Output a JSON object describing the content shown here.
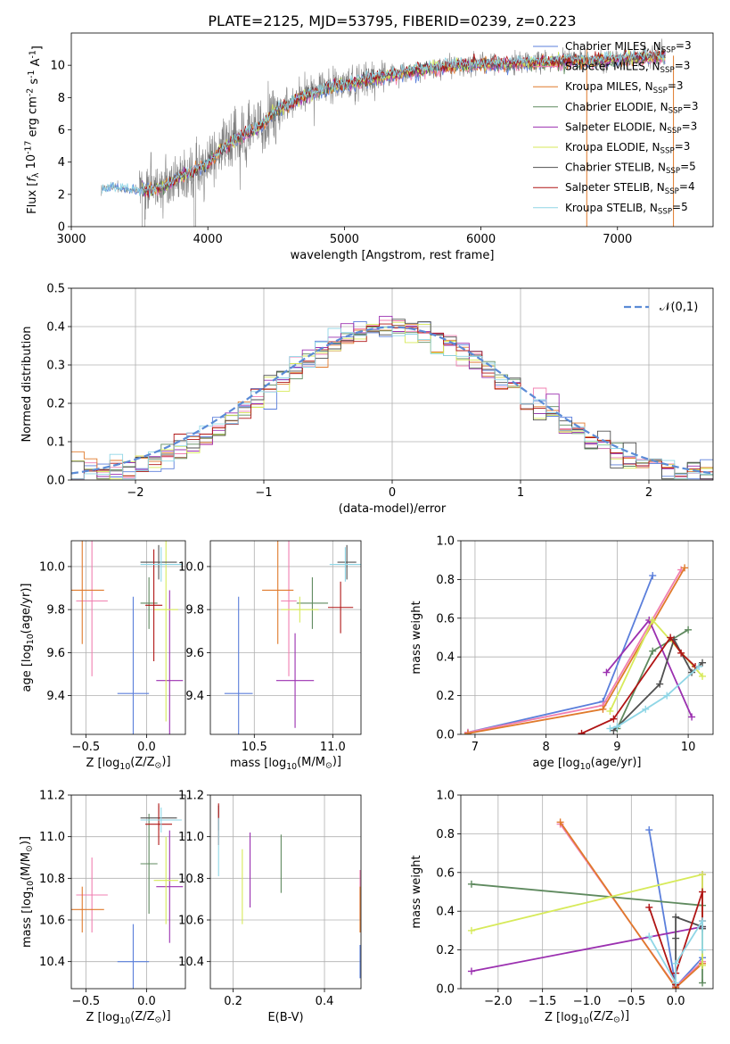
{
  "figure_title": "PLATE=2125, MJD=53795, FIBERID=0239, z=0.223",
  "colors": {
    "grid": "#b0b0b0",
    "observed_spectrum": "#808080",
    "normal_curve": "#5b8bd6"
  },
  "series_styles": [
    {
      "label": "Chabrier MILES, N$_{SSP}$=3",
      "color": "#5b7fdb"
    },
    {
      "label": "Salpeter MILES, N$_{SSP}$=3",
      "color": "#f07fb0"
    },
    {
      "label": "Kroupa MILES, N$_{SSP}$=3",
      "color": "#e07a2c"
    },
    {
      "label": "Chabrier ELODIE, N$_{SSP}$=3",
      "color": "#5f8a5f"
    },
    {
      "label": "Salpeter ELODIE, N$_{SSP}$=3",
      "color": "#9b30b0"
    },
    {
      "label": "Kroupa ELODIE, N$_{SSP}$=3",
      "color": "#d7ea5a"
    },
    {
      "label": "Chabrier STELIB, N$_{SSP}$=5",
      "color": "#505050"
    },
    {
      "label": "Salpeter STELIB, N$_{SSP}$=4",
      "color": "#b01515"
    },
    {
      "label": "Kroupa STELIB, N$_{SSP}$=5",
      "color": "#8fd6e6"
    }
  ],
  "chart_data": [
    {
      "id": "spectrum",
      "type": "line",
      "xlabel": "wavelength [Angstrom, rest frame]",
      "ylabel": "Flux [$f_\\lambda 10^{-17}$ erg cm$^{-2}$ s$^{-1}$ A$^{-1}$]",
      "xlim": [
        3000,
        7700
      ],
      "ylim": [
        0,
        12
      ],
      "xticks": [
        3000,
        4000,
        5000,
        6000,
        7000
      ],
      "yticks": [
        0,
        2,
        4,
        6,
        8,
        10
      ],
      "grid": false,
      "legend": "right",
      "observed_anchor": {
        "x": [
          3220,
          3300,
          3400,
          3500,
          3600,
          3700,
          3800,
          3900,
          4000,
          4100,
          4200,
          4300,
          4400,
          4500,
          4600,
          4700,
          4800,
          4900,
          5000,
          5200,
          5400,
          5600,
          5800,
          6000,
          6200,
          6400,
          6600,
          6800,
          7000,
          7200,
          7350
        ],
        "y": [
          2.4,
          2.5,
          2.3,
          2.2,
          2.3,
          2.6,
          3.2,
          3.5,
          3.9,
          4.8,
          5.4,
          5.8,
          6.4,
          7.2,
          7.6,
          8.1,
          8.4,
          8.7,
          8.8,
          9.2,
          9.5,
          9.8,
          10.0,
          10.1,
          10.1,
          10.2,
          10.3,
          10.3,
          10.4,
          10.5,
          10.6
        ]
      }
    },
    {
      "id": "residuals",
      "type": "histogram",
      "xlabel": "(data-model)/error",
      "ylabel": "Normed distribution",
      "xlim": [
        -2.5,
        2.5
      ],
      "ylim": [
        0,
        0.5
      ],
      "xticks": [
        -2,
        -1,
        0,
        1,
        2
      ],
      "yticks": [
        0.0,
        0.1,
        0.2,
        0.3,
        0.4,
        0.5
      ],
      "grid": true,
      "legend": "top-right",
      "normal_label": "$\\mathcal{N}(0,1)$",
      "bins": 50
    },
    {
      "id": "age_vs_Z",
      "type": "scatter",
      "xlabel": "Z [$\\log_{10}(Z/Z_\\odot)$]",
      "ylabel": "age  [$\\log_{10}(age/yr)$]",
      "xlim": [
        -0.62,
        0.32
      ],
      "ylim": [
        9.22,
        10.12
      ],
      "xticks": [
        -0.5,
        0.0
      ],
      "yticks": [
        9.4,
        9.6,
        9.8,
        10.0
      ],
      "grid": true,
      "points": [
        {
          "series": 0,
          "x": -0.11,
          "y": 9.41,
          "xerr": 0.13,
          "yerr": 0.45
        },
        {
          "series": 1,
          "x": -0.45,
          "y": 9.84,
          "xerr": 0.13,
          "yerr": 0.35
        },
        {
          "series": 2,
          "x": -0.53,
          "y": 9.89,
          "xerr": 0.18,
          "yerr": 0.25
        },
        {
          "series": 3,
          "x": 0.02,
          "y": 9.83,
          "xerr": 0.07,
          "yerr": 0.12
        },
        {
          "series": 4,
          "x": 0.19,
          "y": 9.47,
          "xerr": 0.11,
          "yerr": 0.42
        },
        {
          "series": 5,
          "x": 0.16,
          "y": 9.8,
          "xerr": 0.1,
          "yerr": 0.52
        },
        {
          "series": 6,
          "x": 0.1,
          "y": 10.02,
          "xerr": 0.15,
          "yerr": 0.08
        },
        {
          "series": 7,
          "x": 0.06,
          "y": 9.82,
          "xerr": 0.07,
          "yerr": 0.26
        },
        {
          "series": 8,
          "x": 0.12,
          "y": 10.01,
          "xerr": 0.17,
          "yerr": 0.08
        }
      ]
    },
    {
      "id": "age_vs_mass",
      "type": "scatter",
      "xlabel": "mass [$\\log_{10}(M/M_\\odot)$]",
      "ylabel": "",
      "xlim": [
        10.22,
        11.18
      ],
      "ylim": [
        9.22,
        10.12
      ],
      "xticks": [
        10.5,
        11.0
      ],
      "yticks": [
        9.4,
        9.6,
        9.8,
        10.0
      ],
      "grid": true,
      "points": [
        {
          "series": 0,
          "x": 10.4,
          "y": 9.41,
          "xerr": 0.09,
          "yerr": 0.45
        },
        {
          "series": 1,
          "x": 10.72,
          "y": 9.84,
          "xerr": 0.05,
          "yerr": 0.35
        },
        {
          "series": 2,
          "x": 10.65,
          "y": 9.89,
          "xerr": 0.1,
          "yerr": 0.25
        },
        {
          "series": 3,
          "x": 10.87,
          "y": 9.83,
          "xerr": 0.1,
          "yerr": 0.12
        },
        {
          "series": 4,
          "x": 10.76,
          "y": 9.47,
          "xerr": 0.12,
          "yerr": 0.22
        },
        {
          "series": 5,
          "x": 10.79,
          "y": 9.8,
          "xerr": 0.12,
          "yerr": 0.06
        },
        {
          "series": 6,
          "x": 11.09,
          "y": 10.02,
          "xerr": 0.06,
          "yerr": 0.08
        },
        {
          "series": 7,
          "x": 11.05,
          "y": 9.81,
          "xerr": 0.08,
          "yerr": 0.12
        },
        {
          "series": 8,
          "x": 11.08,
          "y": 10.01,
          "xerr": 0.1,
          "yerr": 0.08
        }
      ]
    },
    {
      "id": "weight_vs_age",
      "type": "line",
      "xlabel": "age  [$\\log_{10}(age/yr)$]",
      "ylabel": "mass weight",
      "xlim": [
        6.8,
        10.35
      ],
      "ylim": [
        0,
        1.0
      ],
      "xticks": [
        7,
        8,
        9,
        10
      ],
      "yticks": [
        0.0,
        0.2,
        0.4,
        0.6,
        0.8,
        1.0
      ],
      "grid": true,
      "series": [
        {
          "series": 0,
          "x": [
            6.9,
            8.8,
            9.5
          ],
          "y": [
            0.01,
            0.17,
            0.82
          ]
        },
        {
          "series": 1,
          "x": [
            6.9,
            8.8,
            9.9
          ],
          "y": [
            0.01,
            0.15,
            0.85
          ]
        },
        {
          "series": 2,
          "x": [
            6.9,
            8.8,
            9.95
          ],
          "y": [
            0.005,
            0.13,
            0.86
          ]
        },
        {
          "series": 3,
          "x": [
            9.0,
            9.5,
            10.0
          ],
          "y": [
            0.03,
            0.43,
            0.54
          ]
        },
        {
          "series": 4,
          "x": [
            8.85,
            9.45,
            10.05
          ],
          "y": [
            0.32,
            0.59,
            0.09
          ]
        },
        {
          "series": 5,
          "x": [
            8.9,
            9.5,
            10.2
          ],
          "y": [
            0.12,
            0.59,
            0.3
          ]
        },
        {
          "series": 6,
          "x": [
            8.95,
            9.6,
            9.8,
            10.05,
            10.2
          ],
          "y": [
            0.02,
            0.26,
            0.49,
            0.32,
            0.37
          ]
        },
        {
          "series": 7,
          "x": [
            8.5,
            8.95,
            9.75,
            9.9,
            10.1
          ],
          "y": [
            0.005,
            0.08,
            0.5,
            0.42,
            0.35
          ]
        },
        {
          "series": 8,
          "x": [
            8.9,
            9.0,
            9.4,
            9.7,
            10.15
          ],
          "y": [
            0.03,
            0.04,
            0.13,
            0.2,
            0.35
          ]
        }
      ]
    },
    {
      "id": "mass_vs_Z",
      "type": "scatter",
      "xlabel": "Z [$\\log_{10}(Z/Z_\\odot)$]",
      "ylabel": "mass [$\\log_{10}(M/M_\\odot)$]",
      "xlim": [
        -0.62,
        0.32
      ],
      "ylim": [
        10.27,
        11.2
      ],
      "xticks": [
        -0.5,
        0.0
      ],
      "yticks": [
        10.4,
        10.6,
        10.8,
        11.0,
        11.2
      ],
      "grid": true,
      "points": [
        {
          "series": 0,
          "x": -0.11,
          "y": 10.4,
          "xerr": 0.13,
          "yerr": 0.18
        },
        {
          "series": 1,
          "x": -0.45,
          "y": 10.72,
          "xerr": 0.13,
          "yerr": 0.18
        },
        {
          "series": 2,
          "x": -0.53,
          "y": 10.65,
          "xerr": 0.18,
          "yerr": 0.11
        },
        {
          "series": 3,
          "x": 0.02,
          "y": 10.87,
          "xerr": 0.07,
          "yerr": 0.24
        },
        {
          "series": 4,
          "x": 0.19,
          "y": 10.76,
          "xerr": 0.11,
          "yerr": 0.27
        },
        {
          "series": 5,
          "x": 0.16,
          "y": 10.79,
          "xerr": 0.1,
          "yerr": 0.21
        },
        {
          "series": 6,
          "x": 0.1,
          "y": 11.09,
          "xerr": 0.15,
          "yerr": 0.06
        },
        {
          "series": 7,
          "x": 0.1,
          "y": 11.06,
          "xerr": 0.11,
          "yerr": 0.1
        },
        {
          "series": 8,
          "x": 0.12,
          "y": 11.08,
          "xerr": 0.17,
          "yerr": 0.06
        }
      ]
    },
    {
      "id": "mass_vs_ebv",
      "type": "scatter",
      "xlabel": "E(B-V)",
      "ylabel": "",
      "xlim": [
        0.15,
        0.48
      ],
      "ylim": [
        10.27,
        11.2
      ],
      "xticks": [
        0.2,
        0.4
      ],
      "yticks": [
        10.4,
        10.6,
        10.8,
        11.0,
        11.2
      ],
      "grid": true,
      "points": [
        {
          "series": 0,
          "x": 0.478,
          "y": 10.4,
          "xerr": 0,
          "yerr": 0.08
        },
        {
          "series": 1,
          "x": 0.478,
          "y": 10.72,
          "xerr": 0,
          "yerr": 0.12
        },
        {
          "series": 2,
          "x": 0.478,
          "y": 10.65,
          "xerr": 0,
          "yerr": 0.11
        },
        {
          "series": 3,
          "x": 0.305,
          "y": 10.87,
          "xerr": 0,
          "yerr": 0.14
        },
        {
          "series": 4,
          "x": 0.237,
          "y": 10.84,
          "xerr": 0,
          "yerr": 0.18
        },
        {
          "series": 5,
          "x": 0.22,
          "y": 10.76,
          "xerr": 0,
          "yerr": 0.18
        },
        {
          "series": 6,
          "x": 0.168,
          "y": 11.09,
          "xerr": 0,
          "yerr": 0.06
        },
        {
          "series": 7,
          "x": 0.168,
          "y": 11.06,
          "xerr": 0,
          "yerr": 0.1
        },
        {
          "series": 8,
          "x": 0.168,
          "y": 10.95,
          "xerr": 0,
          "yerr": 0.14
        }
      ]
    },
    {
      "id": "weight_vs_Z",
      "type": "line",
      "xlabel": "Z [$\\log_{10}(Z/Z_\\odot)$]",
      "ylabel": "mass weight",
      "xlim": [
        -2.42,
        0.42
      ],
      "ylim": [
        0,
        1.0
      ],
      "xticks": [
        -2.0,
        -1.5,
        -1.0,
        -0.5,
        0.0
      ],
      "yticks": [
        0.0,
        0.2,
        0.4,
        0.6,
        0.8,
        1.0
      ],
      "grid": true,
      "series": [
        {
          "series": 0,
          "x": [
            -0.3,
            0.0,
            0.3
          ],
          "y": [
            0.82,
            0.01,
            0.16
          ]
        },
        {
          "series": 1,
          "x": [
            -1.3,
            0.0,
            0.3
          ],
          "y": [
            0.85,
            0.01,
            0.14
          ]
        },
        {
          "series": 2,
          "x": [
            -1.3,
            0.0,
            0.3
          ],
          "y": [
            0.86,
            0.005,
            0.13
          ]
        },
        {
          "series": 3,
          "x": [
            -2.3,
            0.3,
            0.3
          ],
          "y": [
            0.54,
            0.43,
            0.03
          ]
        },
        {
          "series": 4,
          "x": [
            -2.3,
            0.3,
            0.3
          ],
          "y": [
            0.09,
            0.32,
            0.59
          ]
        },
        {
          "series": 5,
          "x": [
            -2.3,
            0.3,
            0.3
          ],
          "y": [
            0.3,
            0.59,
            0.12
          ]
        },
        {
          "series": 6,
          "x": [
            0.0,
            0.0,
            0.0,
            0.3,
            0.3
          ],
          "y": [
            0.02,
            0.26,
            0.37,
            0.32,
            0.31
          ]
        },
        {
          "series": 7,
          "x": [
            -0.3,
            0.0,
            0.0,
            0.3,
            0.3
          ],
          "y": [
            0.42,
            0.02,
            0.08,
            0.5,
            0.35
          ]
        },
        {
          "series": 8,
          "x": [
            -0.3,
            0.0,
            0.0,
            0.3,
            0.3
          ],
          "y": [
            0.27,
            0.03,
            0.13,
            0.35,
            0.2
          ]
        }
      ]
    }
  ]
}
